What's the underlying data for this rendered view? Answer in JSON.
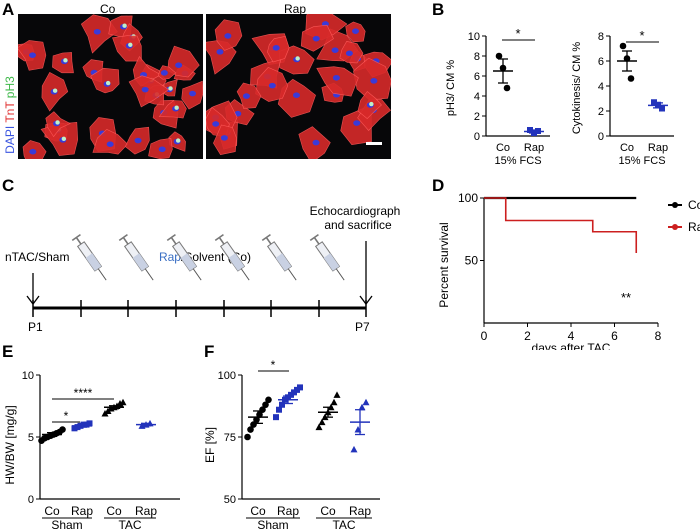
{
  "panels": {
    "A": {
      "letter": "A",
      "ylabel_parts": [
        "DAPI",
        "TnT",
        "pH3"
      ],
      "ylabel_colors": [
        "#3a55e0",
        "#e03030",
        "#3fb84a"
      ],
      "left_title": "Co",
      "right_title": "Rap"
    },
    "B": {
      "letter": "B",
      "footer": "15% FCS"
    },
    "C": {
      "letter": "C",
      "start_label": "nTAC/Sham",
      "injection_label_rap": "Rap",
      "injection_label_rest": "/Solvent (Co)",
      "rap_color": "#3a6fc4",
      "end_label_line1": "Echocardiography",
      "end_label_line2": "and sacrifice",
      "day_start": "P1",
      "day_end": "P7",
      "injection_count": 6
    },
    "D": {
      "letter": "D"
    },
    "E": {
      "letter": "E"
    },
    "F": {
      "letter": "F"
    }
  },
  "chart_data": [
    {
      "panel": "B-left",
      "type": "scatter",
      "categories": [
        "Co",
        "Rap"
      ],
      "ylabel": "pH3/ CM %",
      "xlabel": "15% FCS",
      "ylim": [
        0,
        10
      ],
      "yticks": [
        0,
        2,
        4,
        6,
        8,
        10
      ],
      "series": [
        {
          "category": "Co",
          "points": [
            8.0,
            6.8,
            4.8
          ],
          "mean": 6.5,
          "sem": 1.2,
          "color": "#000000"
        },
        {
          "category": "Rap",
          "points": [
            0.6,
            0.3,
            0.5
          ],
          "mean": 0.45,
          "sem": 0.15,
          "color": "#2233bb"
        }
      ],
      "significance": [
        {
          "between": [
            "Co",
            "Rap"
          ],
          "label": "*"
        }
      ]
    },
    {
      "panel": "B-right",
      "type": "scatter",
      "categories": [
        "Co",
        "Rap"
      ],
      "ylabel": "Cytokinesis/ CM %",
      "xlabel": "15% FCS",
      "ylim": [
        0,
        8
      ],
      "yticks": [
        0,
        2,
        4,
        6,
        8
      ],
      "series": [
        {
          "category": "Co",
          "points": [
            7.2,
            6.2,
            4.6
          ],
          "mean": 6.0,
          "sem": 0.8,
          "color": "#000000"
        },
        {
          "category": "Rap",
          "points": [
            2.7,
            2.5,
            2.2
          ],
          "mean": 2.45,
          "sem": 0.2,
          "color": "#2233bb"
        }
      ],
      "significance": [
        {
          "between": [
            "Co",
            "Rap"
          ],
          "label": "*"
        }
      ]
    },
    {
      "panel": "D",
      "type": "line",
      "xlabel": "days after TAC",
      "ylabel": "Percent survival",
      "xlim": [
        0,
        8
      ],
      "ylim": [
        0,
        100
      ],
      "xticks": [
        0,
        2,
        4,
        6,
        8
      ],
      "yticks": [
        50,
        100
      ],
      "series": [
        {
          "name": "Co",
          "color": "#000000",
          "steps": [
            [
              0,
              100
            ],
            [
              7,
              100
            ]
          ]
        },
        {
          "name": "Rap",
          "color": "#cc1f1f",
          "steps": [
            [
              0,
              100
            ],
            [
              1,
              100
            ],
            [
              1,
              82
            ],
            [
              5,
              82
            ],
            [
              5,
              73
            ],
            [
              7,
              73
            ],
            [
              7,
              56
            ]
          ]
        }
      ],
      "annotation": "**"
    },
    {
      "panel": "E",
      "type": "scatter",
      "ylabel": "HW/BW [mg/g]",
      "ylim": [
        0,
        10
      ],
      "yticks": [
        0,
        5,
        10
      ],
      "categories": [
        "Co",
        "Rap",
        "Co",
        "Rap"
      ],
      "groups": [
        "Sham",
        "TAC"
      ],
      "series": [
        {
          "category": "Co",
          "group": "Sham",
          "mean": 5.2,
          "sem": 0.15,
          "color": "#000000",
          "points": [
            4.7,
            4.9,
            5.0,
            5.1,
            5.2,
            5.3,
            5.4,
            5.6
          ]
        },
        {
          "category": "Rap",
          "group": "Sham",
          "mean": 5.9,
          "sem": 0.1,
          "color": "#2233bb",
          "points": [
            5.7,
            5.8,
            5.9,
            6.0,
            6.0,
            6.1
          ]
        },
        {
          "category": "Co",
          "group": "TAC",
          "mean": 7.4,
          "sem": 0.12,
          "color": "#000000",
          "points": [
            6.9,
            7.1,
            7.3,
            7.4,
            7.5,
            7.7,
            7.8
          ]
        },
        {
          "category": "Rap",
          "group": "TAC",
          "mean": 6.0,
          "sem": 0.1,
          "color": "#2233bb",
          "points": [
            5.9,
            6.0,
            6.1
          ]
        }
      ],
      "significance": [
        {
          "between": [
            "Sham-Co",
            "Sham-Rap"
          ],
          "label": "*"
        },
        {
          "between": [
            "Sham-Co",
            "TAC-Co"
          ],
          "label": "****"
        }
      ]
    },
    {
      "panel": "F",
      "type": "scatter",
      "ylabel": "EF [%]",
      "ylim": [
        50,
        100
      ],
      "yticks": [
        50,
        75,
        100
      ],
      "categories": [
        "Co",
        "Rap",
        "Co",
        "Rap"
      ],
      "groups": [
        "Sham",
        "TAC"
      ],
      "series": [
        {
          "category": "Co",
          "group": "Sham",
          "mean": 83,
          "sem": 2.5,
          "color": "#000000",
          "points": [
            75,
            78,
            80,
            82,
            84,
            86,
            88,
            90
          ]
        },
        {
          "category": "Rap",
          "group": "Sham",
          "mean": 90,
          "sem": 1.5,
          "color": "#2233bb",
          "points": [
            83,
            86,
            88,
            90,
            91,
            92,
            93,
            94,
            95
          ]
        },
        {
          "category": "Co",
          "group": "TAC",
          "mean": 85,
          "sem": 2,
          "color": "#000000",
          "points": [
            79,
            81,
            83,
            85,
            87,
            89,
            92
          ]
        },
        {
          "category": "Rap",
          "group": "TAC",
          "mean": 81,
          "sem": 5,
          "color": "#2233bb",
          "points": [
            70,
            78,
            87,
            89
          ]
        }
      ],
      "significance": [
        {
          "between": [
            "Sham-Co",
            "Sham-Rap"
          ],
          "label": "*"
        }
      ]
    }
  ]
}
